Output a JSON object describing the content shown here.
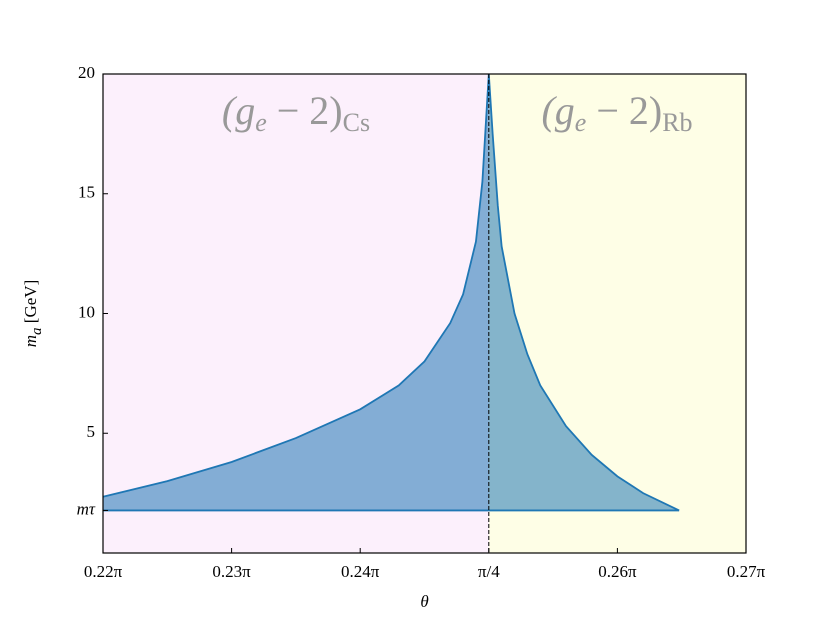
{
  "chart_data": {
    "type": "area",
    "x": [
      0.22,
      0.225,
      0.23,
      0.235,
      0.24,
      0.243,
      0.245,
      0.247,
      0.248,
      0.249,
      0.2495,
      0.25,
      0.2503,
      0.2507,
      0.251,
      0.252,
      0.253,
      0.254,
      0.256,
      0.258,
      0.26,
      0.262,
      0.2648
    ],
    "series": [
      {
        "color": "#1f77b4",
        "values": [
          2.35,
          3.0,
          3.8,
          4.8,
          6.0,
          7.0,
          8.0,
          9.6,
          10.8,
          13.0,
          15.5,
          20,
          17.5,
          14.5,
          12.8,
          10.0,
          8.3,
          7.0,
          5.3,
          4.1,
          3.2,
          2.5,
          1.777
        ]
      }
    ],
    "xlim": [
      0.22,
      0.27
    ],
    "xticks": [
      {
        "value": 0.22,
        "label": "0.22π"
      },
      {
        "value": 0.23,
        "label": "0.23π"
      },
      {
        "value": 0.24,
        "label": "0.24π"
      },
      {
        "value": 0.25,
        "label": "π/4"
      },
      {
        "value": 0.26,
        "label": "0.26π"
      },
      {
        "value": 0.27,
        "label": "0.27π"
      }
    ],
    "ylim": [
      0,
      20
    ],
    "yticks": [
      {
        "value": 1.777,
        "label": "mτ"
      },
      5,
      10,
      15,
      20
    ],
    "xlabel": "θ",
    "ylabel": [
      "m",
      "a",
      " [GeV]"
    ],
    "regions": [
      {
        "color": "#fcf0fc",
        "parts": [
          "(g",
          "e",
          " − 2)",
          "Cs"
        ]
      },
      {
        "color": "#fefee6",
        "parts": [
          "(g",
          "e",
          " − 2)",
          "Rb"
        ]
      }
    ]
  }
}
